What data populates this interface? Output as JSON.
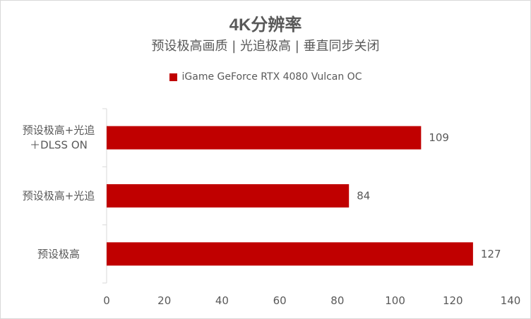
{
  "chart_data": {
    "type": "bar",
    "orientation": "horizontal",
    "title": "4K分辨率",
    "subtitle": "预设极高画质 | 光追极高 | 垂直同步关闭",
    "categories": [
      [
        "预设极高+光追",
        "＋DLSS ON"
      ],
      [
        "预设极高+光追"
      ],
      [
        "预设极高"
      ]
    ],
    "series": [
      {
        "name": "iGame GeForce RTX 4080 Vulcan OC",
        "values": [
          109,
          84,
          127
        ],
        "color": "#c00000"
      }
    ],
    "xlim": [
      0,
      140
    ],
    "xticks": [
      0,
      20,
      40,
      60,
      80,
      100,
      120,
      140
    ],
    "legend_position": "top",
    "grid": false
  }
}
